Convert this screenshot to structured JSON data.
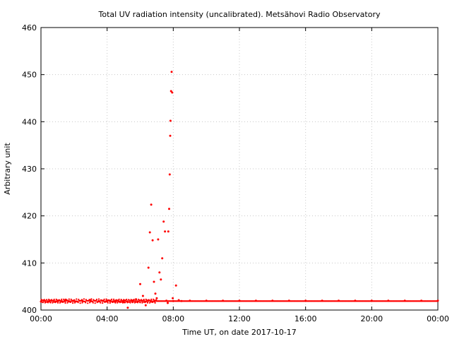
{
  "chart_data": {
    "type": "scatter",
    "title": "Total UV radiation intensity (uncalibrated). Metsähovi Radio Observatory",
    "xlabel": "Time UT, on date 2017-10-17",
    "ylabel": "Arbitrary unit",
    "xlim": [
      "00:00",
      "24:00"
    ],
    "ylim": [
      400,
      460
    ],
    "x_ticks": [
      "00:00",
      "04:00",
      "08:00",
      "12:00",
      "16:00",
      "20:00",
      "00:00"
    ],
    "y_ticks": [
      "400",
      "410",
      "420",
      "430",
      "440",
      "450",
      "460"
    ],
    "grid": true,
    "point_color": "#ff0000",
    "baseline_value": 401.9,
    "series": [
      {
        "x": [
          "00:00",
          "00:30",
          "01:00",
          "01:30",
          "02:00",
          "02:30",
          "03:00",
          "03:30",
          "04:00",
          "04:30",
          "05:00",
          "05:15",
          "05:30",
          "05:45",
          "06:00",
          "06:10",
          "06:20",
          "06:30",
          "06:35",
          "06:40",
          "06:45",
          "06:50",
          "06:55",
          "07:00",
          "07:05",
          "07:10",
          "07:15",
          "07:20",
          "07:25",
          "07:30",
          "07:35",
          "07:40",
          "07:42",
          "07:45",
          "07:47",
          "07:49",
          "07:50",
          "07:52",
          "07:54",
          "07:56",
          "07:58",
          "08:00",
          "08:10",
          "08:20",
          "08:30",
          "09:00",
          "10:00",
          "11:00",
          "12:00",
          "13:00",
          "14:00",
          "15:00",
          "16:00",
          "17:00",
          "18:00",
          "19:00",
          "20:00",
          "21:00",
          "22:00",
          "23:00",
          "24:00"
        ],
        "y": [
          401.8,
          401.9,
          402.0,
          402.2,
          401.9,
          402.0,
          402.1,
          401.9,
          402.0,
          401.8,
          401.7,
          400.5,
          402.0,
          402.3,
          405.5,
          403.0,
          401.0,
          409.0,
          416.5,
          422.4,
          414.8,
          406.0,
          403.5,
          402.5,
          415.0,
          408.0,
          406.5,
          411.0,
          418.8,
          416.7,
          402.0,
          401.5,
          416.7,
          421.5,
          428.8,
          437.0,
          440.2,
          446.5,
          450.6,
          446.2,
          402.5,
          401.9,
          405.2,
          402.1,
          401.9,
          402.0,
          402.0,
          402.0,
          402.0,
          402.0,
          402.0,
          402.0,
          402.0,
          402.0,
          402.0,
          402.0,
          402.0,
          402.0,
          402.0,
          402.0,
          402.0
        ]
      }
    ]
  }
}
